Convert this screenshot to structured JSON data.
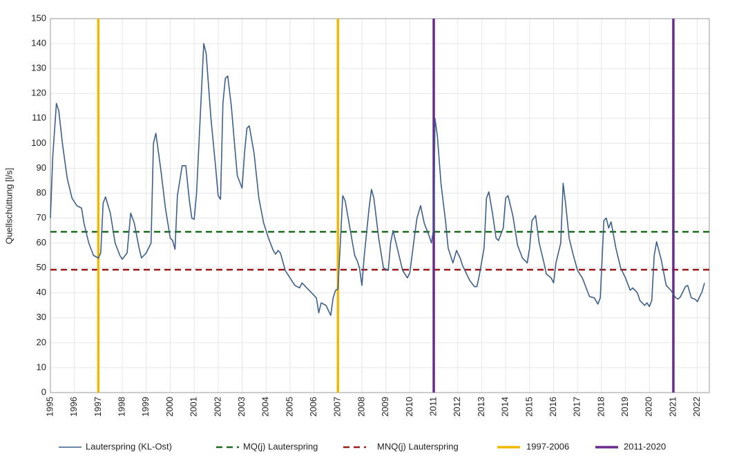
{
  "chart_data": {
    "type": "line",
    "y_label": "Quellschüttung  [l/s]",
    "xlim": [
      1995,
      2022.5
    ],
    "ylim": [
      0,
      150
    ],
    "xticks": [
      1995,
      1996,
      1997,
      1998,
      1999,
      2000,
      2001,
      2002,
      2003,
      2004,
      2005,
      2006,
      2007,
      2008,
      2009,
      2010,
      2011,
      2012,
      2013,
      2014,
      2015,
      2016,
      2017,
      2018,
      2019,
      2020,
      2021,
      2022
    ],
    "yticks": [
      0,
      10,
      20,
      30,
      40,
      50,
      60,
      70,
      80,
      90,
      100,
      110,
      120,
      130,
      140,
      150
    ],
    "grid": true,
    "legend": "bottom",
    "series": [
      {
        "name": "Lauterspring (KL-Ost)",
        "color": "#3b5f8a",
        "x": [
          1995.0,
          1995.1,
          1995.25,
          1995.35,
          1995.5,
          1995.7,
          1995.9,
          1996.1,
          1996.3,
          1996.4,
          1996.6,
          1996.8,
          1997.0,
          1997.1,
          1997.2,
          1997.3,
          1997.5,
          1997.7,
          1997.9,
          1998.0,
          1998.2,
          1998.35,
          1998.5,
          1998.7,
          1998.8,
          1999.0,
          1999.2,
          1999.3,
          1999.4,
          1999.6,
          1999.8,
          2000.0,
          2000.1,
          2000.2,
          2000.3,
          2000.5,
          2000.65,
          2000.8,
          2000.9,
          2001.0,
          2001.1,
          2001.3,
          2001.4,
          2001.5,
          2001.7,
          2001.9,
          2002.0,
          2002.1,
          2002.2,
          2002.3,
          2002.4,
          2002.55,
          2002.7,
          2002.8,
          2003.0,
          2003.1,
          2003.2,
          2003.3,
          2003.5,
          2003.7,
          2003.9,
          2004.1,
          2004.3,
          2004.4,
          2004.5,
          2004.6,
          2004.8,
          2005.0,
          2005.2,
          2005.4,
          2005.5,
          2005.7,
          2005.9,
          2006.1,
          2006.2,
          2006.3,
          2006.5,
          2006.6,
          2006.7,
          2006.8,
          2006.9,
          2007.0,
          2007.1,
          2007.2,
          2007.3,
          2007.5,
          2007.7,
          2007.8,
          2007.9,
          2008.0,
          2008.1,
          2008.3,
          2008.4,
          2008.5,
          2008.7,
          2008.9,
          2009.1,
          2009.2,
          2009.3,
          2009.5,
          2009.7,
          2009.9,
          2010.0,
          2010.2,
          2010.3,
          2010.45,
          2010.6,
          2010.8,
          2010.9,
          2011.0,
          2011.05,
          2011.15,
          2011.3,
          2011.5,
          2011.6,
          2011.8,
          2011.95,
          2012.1,
          2012.2,
          2012.4,
          2012.5,
          2012.7,
          2012.8,
          2012.9,
          2013.1,
          2013.2,
          2013.3,
          2013.45,
          2013.6,
          2013.7,
          2013.9,
          2014.0,
          2014.1,
          2014.3,
          2014.5,
          2014.7,
          2014.9,
          2015.0,
          2015.1,
          2015.25,
          2015.4,
          2015.6,
          2015.7,
          2015.9,
          2016.0,
          2016.1,
          2016.3,
          2016.4,
          2016.5,
          2016.65,
          2016.8,
          2017.0,
          2017.2,
          2017.4,
          2017.5,
          2017.7,
          2017.85,
          2017.95,
          2018.1,
          2018.2,
          2018.3,
          2018.4,
          2018.6,
          2018.8,
          2019.0,
          2019.2,
          2019.3,
          2019.5,
          2019.6,
          2019.8,
          2019.9,
          2020.0,
          2020.1,
          2020.2,
          2020.3,
          2020.5,
          2020.7,
          2020.9,
          2021.1,
          2021.2,
          2021.3,
          2021.5,
          2021.6,
          2021.75,
          2021.9,
          2022.0,
          2022.2,
          2022.3
        ],
        "values": [
          70,
          95,
          116,
          113,
          100,
          86,
          78,
          75,
          74,
          68,
          60,
          55,
          54,
          56,
          76,
          78.5,
          72,
          60,
          55,
          53.5,
          56,
          72,
          68,
          58,
          54,
          56,
          60,
          100,
          104,
          90,
          74,
          62,
          61,
          57.5,
          79,
          91,
          91,
          77,
          70,
          69.5,
          80,
          120,
          140,
          136,
          110,
          90,
          79,
          77.5,
          116,
          126,
          127,
          115,
          98,
          87,
          82,
          96,
          106,
          107,
          96,
          78,
          68,
          62,
          57,
          55.5,
          57,
          56,
          49,
          46,
          43,
          42,
          44,
          42,
          40,
          38,
          32,
          36,
          35,
          33,
          31,
          38,
          41,
          41.5,
          60,
          79,
          77,
          66,
          55,
          53,
          50,
          43,
          55,
          74,
          81.5,
          78,
          62,
          50,
          49,
          60,
          65,
          57,
          49,
          46,
          48,
          63,
          70,
          75,
          68,
          63,
          60,
          66,
          110,
          103,
          84,
          68,
          58,
          52,
          57,
          54,
          51,
          47,
          45,
          42.5,
          42.5,
          47,
          58,
          78,
          80.5,
          72,
          62,
          61,
          66,
          78,
          79,
          71,
          59,
          54,
          52,
          58,
          69,
          71,
          60,
          52,
          47.5,
          46,
          44,
          52,
          60,
          84,
          76,
          62,
          56,
          49,
          46,
          41,
          38.5,
          38,
          35.5,
          38,
          69,
          70,
          66,
          68.5,
          58,
          50,
          46,
          41,
          42,
          40,
          37,
          35,
          36,
          34.5,
          37,
          55,
          60.5,
          53,
          43,
          41,
          38,
          37.5,
          38.5,
          42.5,
          43,
          38,
          37.5,
          36.5,
          40.5,
          44
        ]
      },
      {
        "name": "MQ(j) Lauterspring",
        "color": "#1b6e1b",
        "dashed": true,
        "hline": 64.5
      },
      {
        "name": "MNQ(j) Lauterspring",
        "color": "#9e1a1a",
        "dashed": true,
        "hline": 49.3
      },
      {
        "name": "1997-2006",
        "color": "#f0b800",
        "vlines": [
          1997,
          2007
        ]
      },
      {
        "name": "2011-2020",
        "color": "#6a2c8c",
        "vlines": [
          2011,
          2021
        ]
      }
    ]
  }
}
